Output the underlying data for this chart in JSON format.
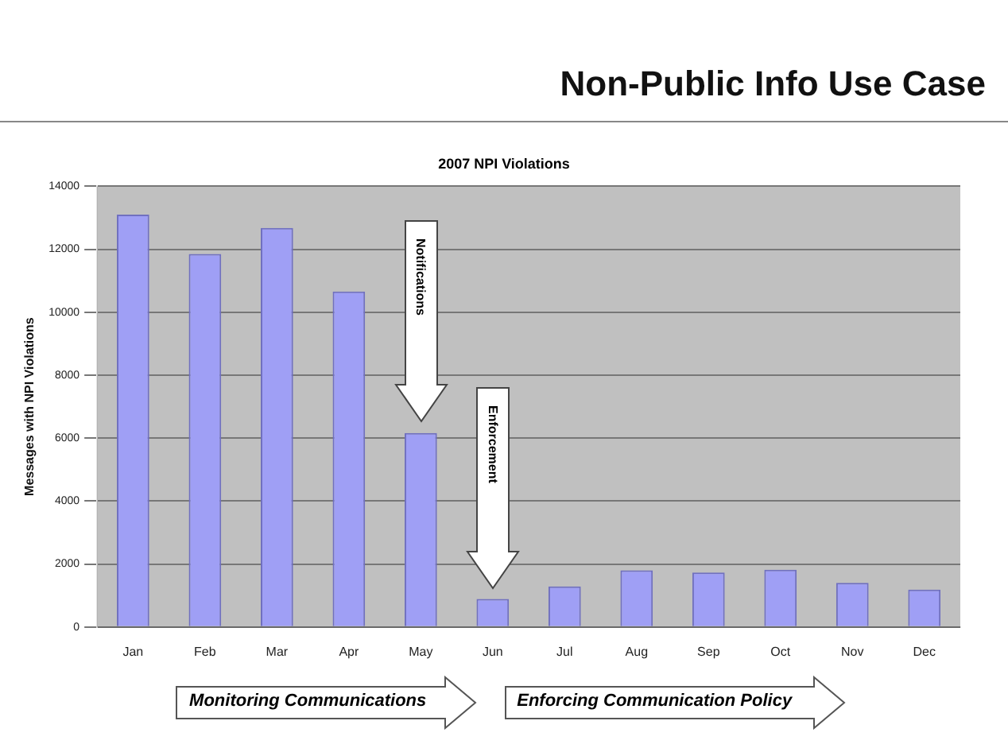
{
  "chart_data": {
    "type": "bar",
    "title": "Non-Public Info Use Case",
    "subtitle": "2007 NPI Violations",
    "ylabel": "Messages with NPI Violations",
    "categories": [
      "Jan",
      "Feb",
      "Mar",
      "Apr",
      "May",
      "Jun",
      "Jul",
      "Aug",
      "Sep",
      "Oct",
      "Nov",
      "Dec"
    ],
    "values": [
      13100,
      11850,
      12680,
      10660,
      6160,
      890,
      1290,
      1800,
      1730,
      1820,
      1400,
      1190
    ],
    "color": "#9f9ff5",
    "ylim": [
      0,
      14000
    ],
    "yticks": [
      0,
      2000,
      4000,
      6000,
      8000,
      10000,
      12000,
      14000
    ],
    "grid": "y",
    "legend": false,
    "annotations": [
      "Notifications",
      "Enforcement",
      "Monitoring Communications",
      "Enforcing Communication Policy"
    ]
  }
}
